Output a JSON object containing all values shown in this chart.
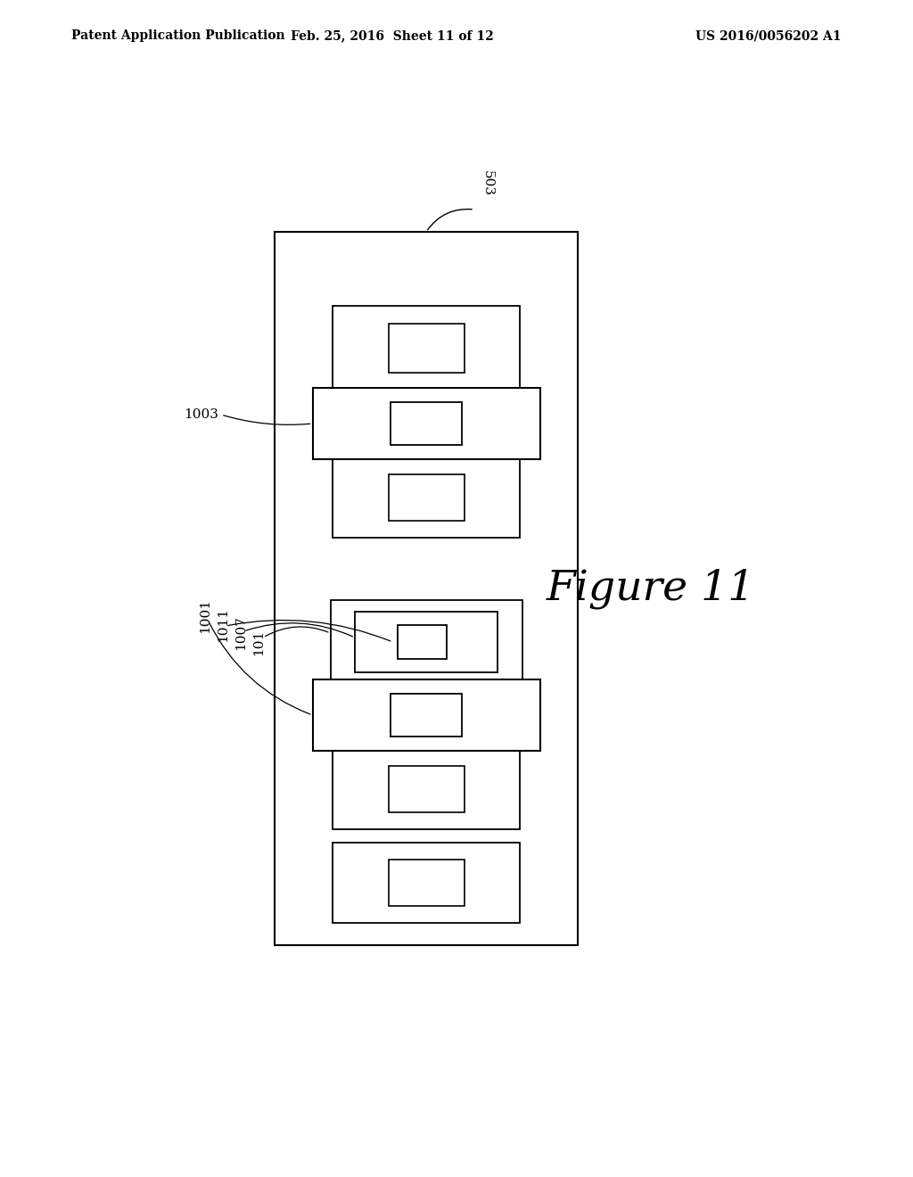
{
  "bg_color": "#ffffff",
  "header_left": "Patent Application Publication",
  "header_mid": "Feb. 25, 2016  Sheet 11 of 12",
  "header_right": "US 2016/0056202 A1",
  "figure_label": "Figure 11",
  "label_503": "503",
  "label_1003": "1003",
  "label_101": "101",
  "label_1007": "1007",
  "label_1011": "1011",
  "label_1001": "1001"
}
